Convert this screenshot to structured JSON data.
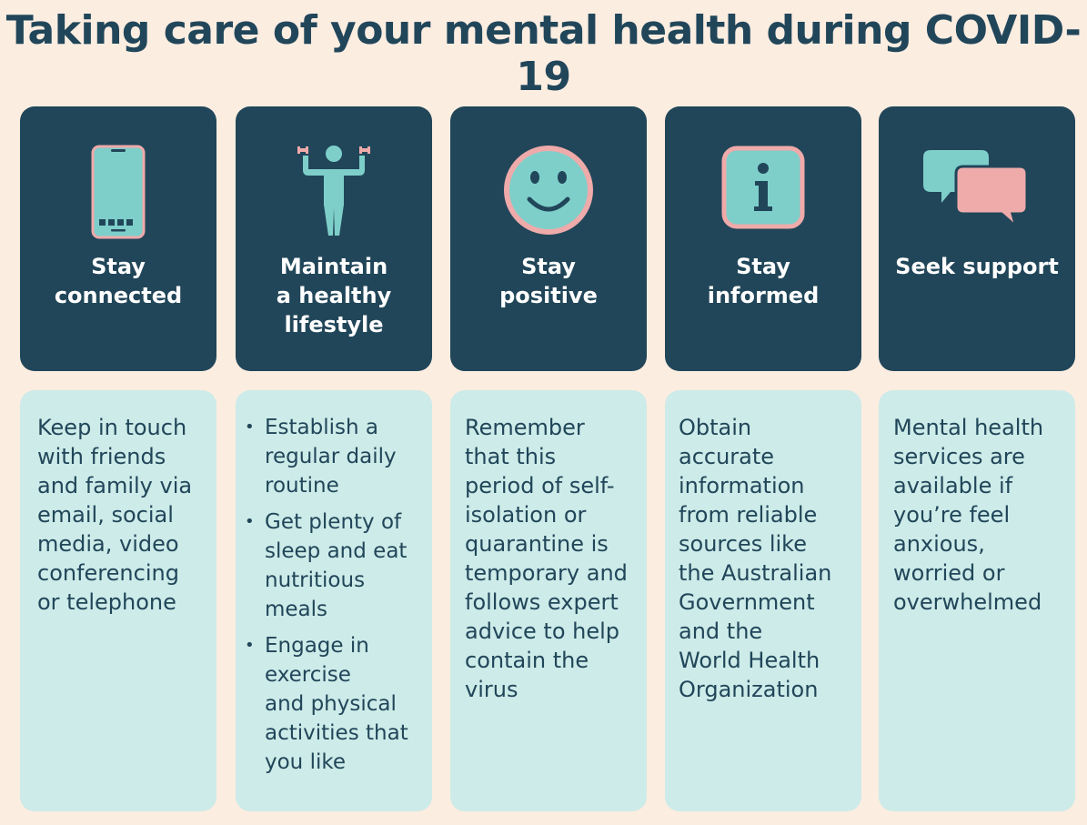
{
  "title": "Taking care of your mental health during COVID-19",
  "colors": {
    "background": "#fcede1",
    "header_card": "#214659",
    "body_card": "#cdebe8",
    "icon_teal": "#7ecfca",
    "icon_pink": "#efaaaa",
    "text_dark": "#21465a"
  },
  "cards": [
    {
      "heading": "Stay\nconnected",
      "icon": "smartphone-icon",
      "text": "Keep in touch\nwith friends\nand family via\nemail, social\nmedia, video\nconferencing\nor telephone"
    },
    {
      "heading": "Maintain\na healthy\nlifestyle",
      "icon": "exercise-person-icon",
      "bullets": [
        "Establish a\nregular daily\nroutine",
        "Get plenty of\nsleep and eat\nnutritious\nmeals",
        "Engage in\nexercise\nand physical\nactivities that\nyou like"
      ]
    },
    {
      "heading": "Stay\npositive",
      "icon": "smiley-face-icon",
      "text": "Remember\nthat this\nperiod of  self-\nisolation or\nquarantine is\ntemporary and\nfollows expert\nadvice to help\ncontain the\nvirus"
    },
    {
      "heading": "Stay\ninformed",
      "icon": "info-icon",
      "text": "Obtain\naccurate\ninformation\nfrom reliable\nsources like\nthe Australian\nGovernment\nand the\nWorld Health\nOrganization"
    },
    {
      "heading": "Seek support",
      "icon": "speech-bubbles-icon",
      "text": "Mental health\nservices are\navailable if\nyou’re feel\nanxious,\nworried or\noverwhelmed"
    }
  ]
}
